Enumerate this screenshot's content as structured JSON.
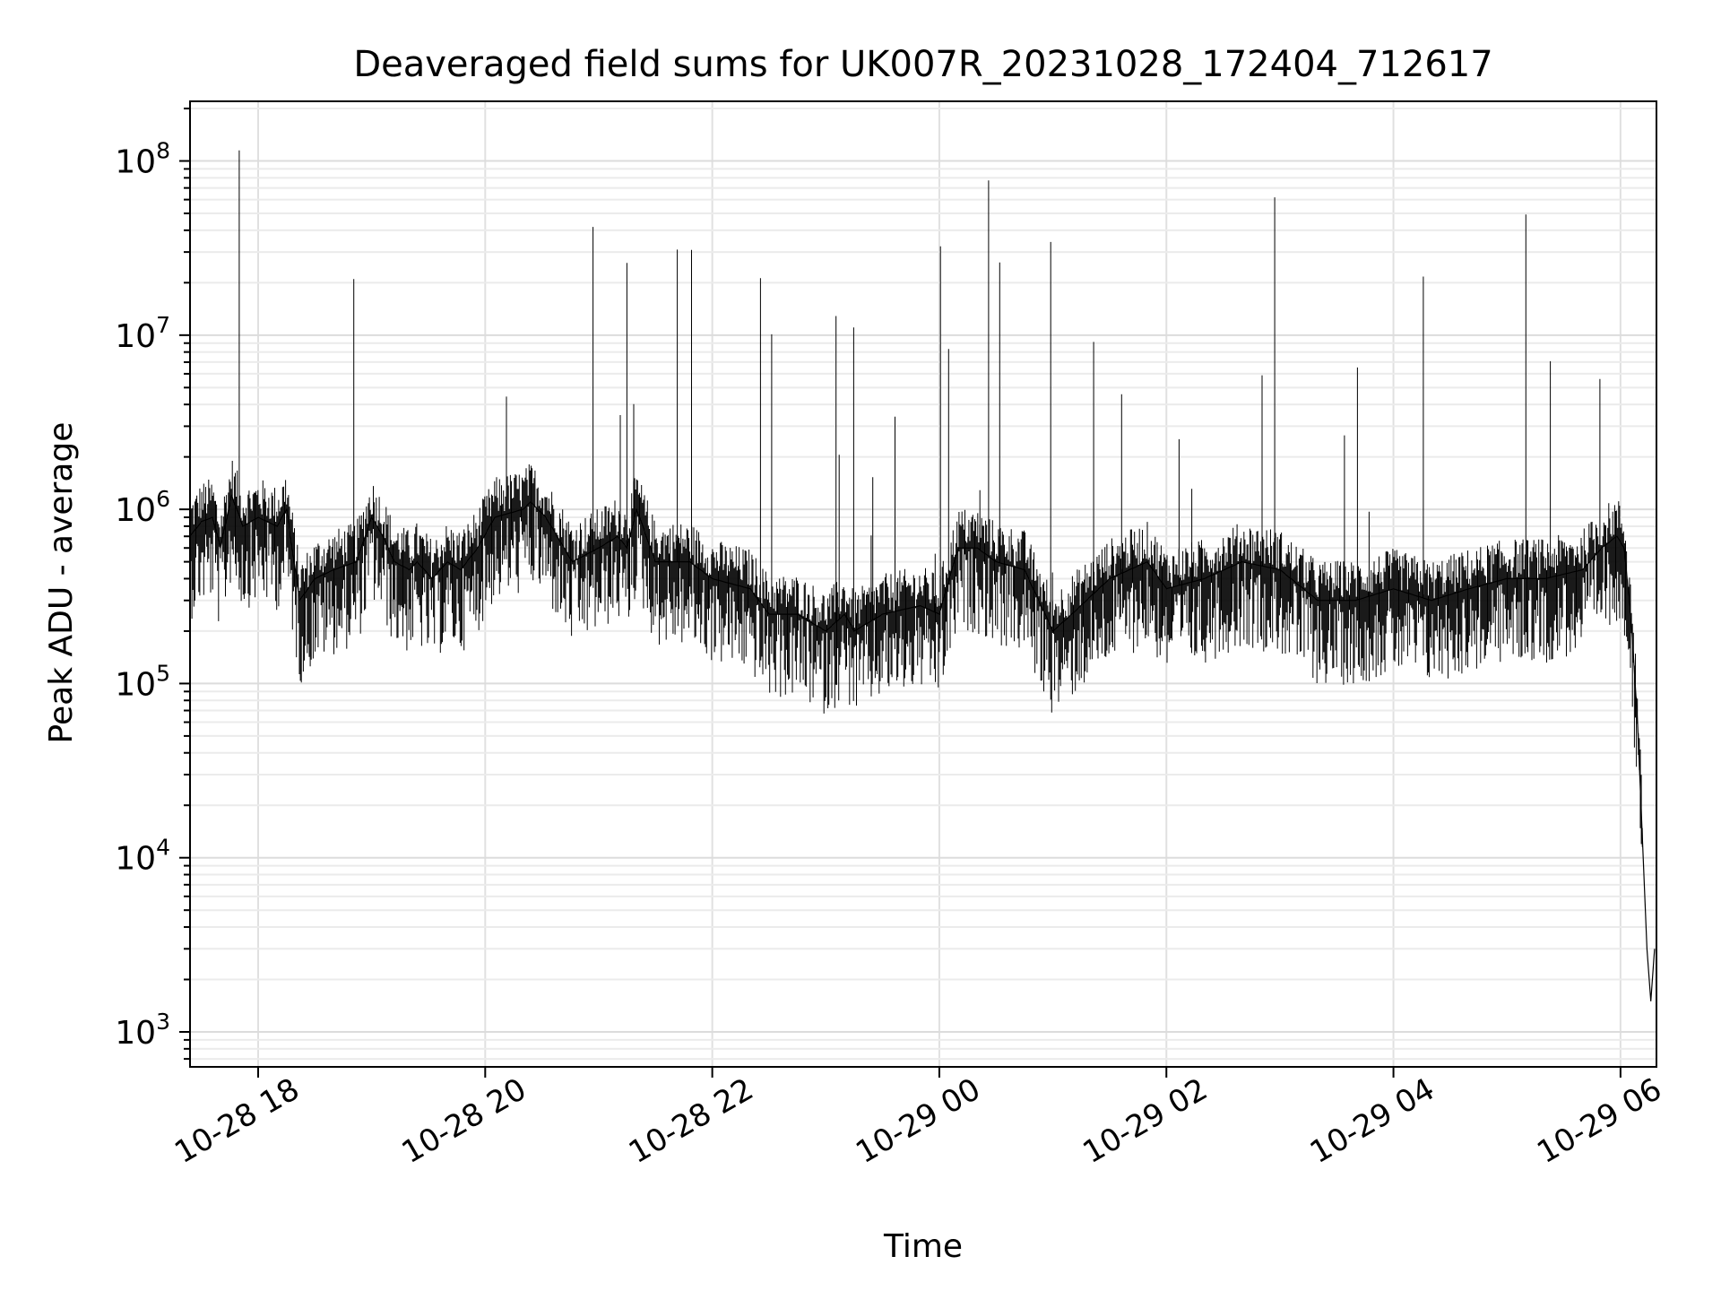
{
  "chart_data": {
    "type": "line",
    "title": "Deaveraged field sums for UK007R_20231028_172404_712617",
    "xlabel": "Time",
    "ylabel": "Peak ADU - average",
    "yscale": "log",
    "xlim": [
      "2023-10-28T17:24",
      "2023-10-29T06:19"
    ],
    "ylim": [
      630,
      220000000
    ],
    "grid": true,
    "line_color": "#000000",
    "x_ticks": [
      {
        "t": "2023-10-28T18:00",
        "label": "10-28 18"
      },
      {
        "t": "2023-10-28T20:00",
        "label": "10-28 20"
      },
      {
        "t": "2023-10-28T22:00",
        "label": "10-28 22"
      },
      {
        "t": "2023-10-29T00:00",
        "label": "10-29 00"
      },
      {
        "t": "2023-10-29T02:00",
        "label": "10-29 02"
      },
      {
        "t": "2023-10-29T04:00",
        "label": "10-29 04"
      },
      {
        "t": "2023-10-29T06:00",
        "label": "10-29 06"
      }
    ],
    "y_ticks": [
      {
        "v": 1000,
        "base": "10",
        "exp": "3"
      },
      {
        "v": 10000,
        "base": "10",
        "exp": "4"
      },
      {
        "v": 100000,
        "base": "10",
        "exp": "5"
      },
      {
        "v": 1000000,
        "base": "10",
        "exp": "6"
      },
      {
        "v": 10000000,
        "base": "10",
        "exp": "7"
      },
      {
        "v": 100000000,
        "base": "10",
        "exp": "8"
      }
    ],
    "series": [
      {
        "x": [
          "2023-10-28T17:24",
          "2023-10-28T17:30",
          "2023-10-28T17:36",
          "2023-10-28T17:40",
          "2023-10-28T17:46",
          "2023-10-28T17:52",
          "2023-10-28T18:00",
          "2023-10-28T18:10",
          "2023-10-28T18:15",
          "2023-10-28T18:22",
          "2023-10-28T18:30",
          "2023-10-28T18:40",
          "2023-10-28T18:52",
          "2023-10-28T19:00",
          "2023-10-28T19:06",
          "2023-10-28T19:12",
          "2023-10-28T19:20",
          "2023-10-28T19:24",
          "2023-10-28T19:32",
          "2023-10-28T19:40",
          "2023-10-28T19:47",
          "2023-10-28T19:56",
          "2023-10-28T20:05",
          "2023-10-28T20:20",
          "2023-10-28T20:24",
          "2023-10-28T20:32",
          "2023-10-28T20:46",
          "2023-10-28T21:00",
          "2023-10-28T21:10",
          "2023-10-28T21:15",
          "2023-10-28T21:20",
          "2023-10-28T21:30",
          "2023-10-28T21:48",
          "2023-10-28T22:00",
          "2023-10-28T22:20",
          "2023-10-28T22:30",
          "2023-10-28T22:45",
          "2023-10-28T23:00",
          "2023-10-28T23:10",
          "2023-10-28T23:15",
          "2023-10-28T23:30",
          "2023-10-28T23:50",
          "2023-10-29T00:00",
          "2023-10-29T00:10",
          "2023-10-29T00:20",
          "2023-10-29T00:30",
          "2023-10-29T00:45",
          "2023-10-29T01:00",
          "2023-10-29T01:10",
          "2023-10-29T01:30",
          "2023-10-29T01:50",
          "2023-10-29T02:00",
          "2023-10-29T02:20",
          "2023-10-29T02:40",
          "2023-10-29T03:00",
          "2023-10-29T03:20",
          "2023-10-29T03:40",
          "2023-10-29T04:00",
          "2023-10-29T04:20",
          "2023-10-29T04:40",
          "2023-10-29T05:00",
          "2023-10-29T05:20",
          "2023-10-29T05:40",
          "2023-10-29T05:50",
          "2023-10-29T05:58",
          "2023-10-29T06:02",
          "2023-10-29T06:06",
          "2023-10-29T06:09",
          "2023-10-29T06:12",
          "2023-10-29T06:14",
          "2023-10-29T06:16",
          "2023-10-29T06:18"
        ],
        "y": [
          700000,
          850000,
          900000,
          600000,
          1200000,
          800000,
          900000,
          800000,
          1000000,
          300000,
          400000,
          450000,
          500000,
          900000,
          700000,
          500000,
          450000,
          500000,
          400000,
          500000,
          450000,
          600000,
          900000,
          1000000,
          1100000,
          900000,
          500000,
          600000,
          700000,
          600000,
          1000000,
          500000,
          500000,
          400000,
          350000,
          250000,
          250000,
          200000,
          250000,
          200000,
          250000,
          280000,
          250000,
          600000,
          600000,
          500000,
          450000,
          200000,
          250000,
          400000,
          500000,
          350000,
          400000,
          500000,
          450000,
          300000,
          300000,
          350000,
          300000,
          350000,
          400000,
          400000,
          450000,
          600000,
          700000,
          600000,
          200000,
          60000,
          10000,
          3000,
          1500,
          3000
        ]
      }
    ]
  }
}
